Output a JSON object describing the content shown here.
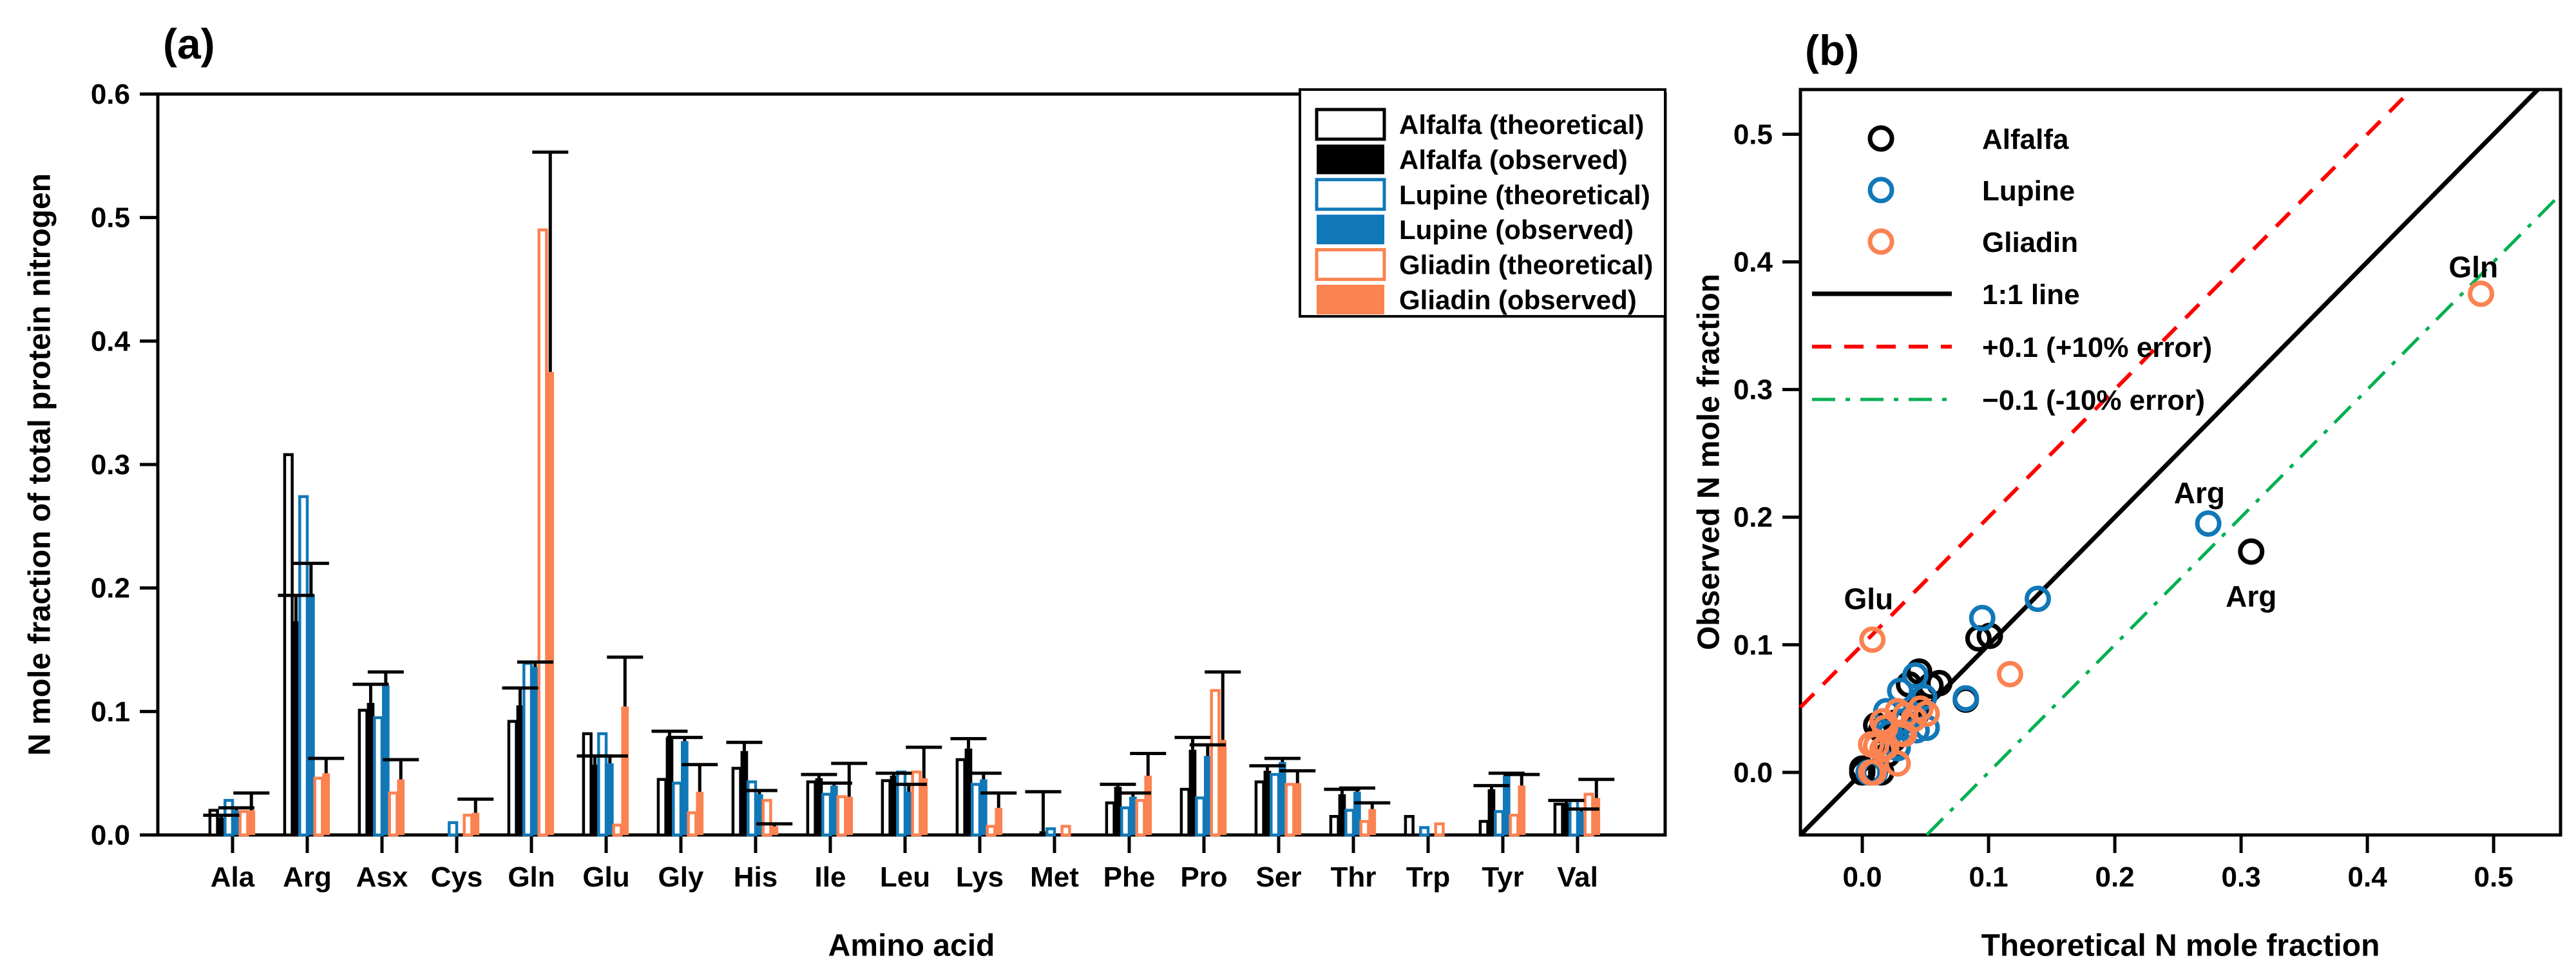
{
  "colors": {
    "black": "#000000",
    "blue": "#1178b8",
    "orange": "#fb8251",
    "red_line": "#ff0000",
    "green_line": "#00b050",
    "background": "#ffffff"
  },
  "chart_data": [
    {
      "type": "bar",
      "panel_label": "(a)",
      "xlabel": "Amino acid",
      "ylabel": "N mole fraction of total protein nitrogen",
      "ylim": [
        0,
        0.6
      ],
      "yticks": [
        0.0,
        0.1,
        0.2,
        0.3,
        0.4,
        0.5,
        0.6
      ],
      "grid": false,
      "legend_position": "top-right-boxed",
      "categories": [
        "Ala",
        "Arg",
        "Asx",
        "Cys",
        "Gln",
        "Glu",
        "Gly",
        "His",
        "Ile",
        "Leu",
        "Lys",
        "Met",
        "Phe",
        "Pro",
        "Ser",
        "Thr",
        "Trp",
        "Tyr",
        "Val"
      ],
      "series": [
        {
          "name": "Alfalfa (theoretical)",
          "style": "outline",
          "color": "#000000",
          "values": [
            0.02,
            0.308,
            0.101,
            0,
            0.092,
            0.082,
            0.045,
            0.054,
            0.043,
            0.044,
            0.061,
            0,
            0.026,
            0.037,
            0.043,
            0.015,
            0.015,
            0.011,
            0.025
          ]
        },
        {
          "name": "Alfalfa (observed)",
          "style": "fill",
          "color": "#000000",
          "values": [
            0.014,
            0.173,
            0.107,
            0,
            0.105,
            0.057,
            0.079,
            0.068,
            0.046,
            0.048,
            0.07,
            0.003,
            0.039,
            0.069,
            0.052,
            0.033,
            0,
            0.037,
            0.026
          ],
          "sd": [
            0.002,
            0.021,
            0.015,
            0,
            0.014,
            0.007,
            0.005,
            0.007,
            0.003,
            0.002,
            0.008,
            0.032,
            0.002,
            0.01,
            0.004,
            0.004,
            0,
            0.003,
            0.002
          ]
        },
        {
          "name": "Lupine (theoretical)",
          "style": "outline",
          "color": "#1178b8",
          "values": [
            0.028,
            0.274,
            0.095,
            0.01,
            0.139,
            0.082,
            0.042,
            0.043,
            0.033,
            0.051,
            0.041,
            0.005,
            0.022,
            0.03,
            0.049,
            0.02,
            0.006,
            0.019,
            0.028
          ]
        },
        {
          "name": "Lupine (observed)",
          "style": "fill",
          "color": "#1178b8",
          "values": [
            0.02,
            0.195,
            0.121,
            0,
            0.136,
            0.058,
            0.076,
            0.033,
            0.04,
            0.035,
            0.045,
            0,
            0.031,
            0.064,
            0.059,
            0.035,
            0,
            0.048,
            0.019
          ],
          "sd": [
            0.002,
            0.025,
            0.011,
            0,
            0.004,
            0.006,
            0.003,
            0.003,
            0.002,
            0.006,
            0.005,
            0,
            0.003,
            0.009,
            0.003,
            0.003,
            0,
            0.002,
            0.002
          ]
        },
        {
          "name": "Gliadin (theoretical)",
          "style": "outline",
          "color": "#fb8251",
          "values": [
            0.019,
            0.046,
            0.034,
            0.016,
            0.49,
            0.008,
            0.018,
            0.028,
            0.031,
            0.051,
            0.007,
            0.007,
            0.028,
            0.117,
            0.041,
            0.011,
            0.009,
            0.016,
            0.033
          ]
        },
        {
          "name": "Gliadin (observed)",
          "style": "fill",
          "color": "#fb8251",
          "values": [
            0.02,
            0.05,
            0.045,
            0.018,
            0.375,
            0.104,
            0.035,
            0.007,
            0.031,
            0.046,
            0.022,
            0,
            0.048,
            0.077,
            0.042,
            0.021,
            0,
            0.04,
            0.03
          ],
          "sd": [
            0.014,
            0.012,
            0.016,
            0.011,
            0.178,
            0.04,
            0.022,
            0.002,
            0.027,
            0.025,
            0.012,
            0,
            0.018,
            0.055,
            0.01,
            0.005,
            0,
            0.009,
            0.015
          ]
        }
      ]
    },
    {
      "type": "scatter",
      "panel_label": "(b)",
      "xlabel": "Theoretical N mole fraction",
      "ylabel": "Observed N mole fraction",
      "xlim": [
        -0.049,
        0.553
      ],
      "ylim": [
        -0.049,
        0.535
      ],
      "xticks": [
        0.0,
        0.1,
        0.2,
        0.3,
        0.4,
        0.5
      ],
      "yticks": [
        0.0,
        0.1,
        0.2,
        0.3,
        0.4,
        0.5
      ],
      "grid": false,
      "legend_position": "top-left-unboxed",
      "point_series": [
        {
          "name": "Alfalfa",
          "color": "#000000",
          "bar_series_theoretical": 0,
          "bar_series_observed": 1
        },
        {
          "name": "Lupine",
          "color": "#1178b8",
          "bar_series_theoretical": 2,
          "bar_series_observed": 3
        },
        {
          "name": "Gliadin",
          "color": "#fb8251",
          "bar_series_theoretical": 4,
          "bar_series_observed": 5
        }
      ],
      "reference_lines": [
        {
          "name": "1:1 line",
          "offset": 0,
          "color": "#000000",
          "dash": "",
          "width": 7
        },
        {
          "name": "+0.1 (+10% error)",
          "offset": 0.1,
          "color": "#ff0000",
          "dash": "30 20",
          "width": 6
        },
        {
          "name": "−0.1 (-10% error)",
          "offset": -0.1,
          "color": "#00b050",
          "dash": "36 16 7 16",
          "width": 5
        }
      ],
      "annotations": [
        {
          "text": "Glu",
          "color": "#fb8251",
          "x": 0.005,
          "y": 0.136
        },
        {
          "text": "Arg",
          "color": "#1178b8",
          "x": 0.267,
          "y": 0.219
        },
        {
          "text": "Arg",
          "color": "#000000",
          "x": 0.308,
          "y": 0.138
        },
        {
          "text": "Gln",
          "color": "#fb8251",
          "x": 0.484,
          "y": 0.396
        }
      ]
    }
  ]
}
